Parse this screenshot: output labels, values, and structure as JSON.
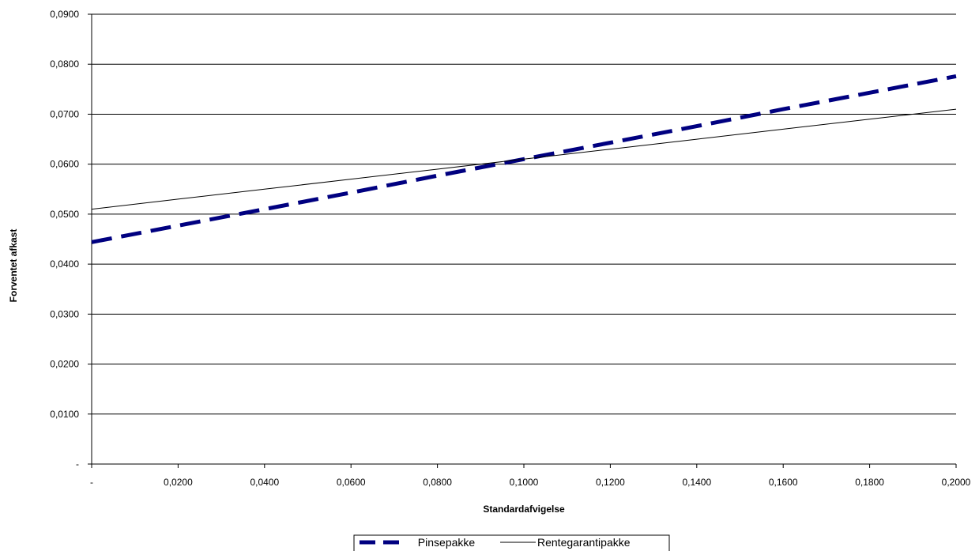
{
  "chart_data": {
    "type": "line",
    "xlabel": "Standardafvigelse",
    "ylabel": "Forventet afkast",
    "xlim": [
      0,
      0.2
    ],
    "ylim": [
      0,
      0.09
    ],
    "x_ticks": [
      "-",
      "0,0200",
      "0,0400",
      "0,0600",
      "0,0800",
      "0,1000",
      "0,1200",
      "0,1400",
      "0,1600",
      "0,1800",
      "0,2000"
    ],
    "y_ticks": [
      "-",
      "0,0100",
      "0,0200",
      "0,0300",
      "0,0400",
      "0,0500",
      "0,0600",
      "0,0700",
      "0,0800",
      "0,0900"
    ],
    "grid": "horizontal",
    "legend_position": "bottom",
    "series": [
      {
        "name": "Pinsepakke",
        "color": "#000080",
        "style": "dashed",
        "x": [
          0,
          0.02,
          0.04,
          0.06,
          0.08,
          0.1,
          0.12,
          0.14,
          0.16,
          0.18,
          0.2
        ],
        "y": [
          0.0444,
          0.0477,
          0.051,
          0.0543,
          0.0577,
          0.061,
          0.0643,
          0.0676,
          0.071,
          0.0743,
          0.0776
        ]
      },
      {
        "name": "Rentegarantipakke",
        "color": "#000000",
        "style": "solid",
        "x": [
          0,
          0.02,
          0.04,
          0.06,
          0.08,
          0.1,
          0.12,
          0.14,
          0.16,
          0.18,
          0.2
        ],
        "y": [
          0.051,
          0.053,
          0.055,
          0.057,
          0.059,
          0.061,
          0.063,
          0.065,
          0.067,
          0.069,
          0.071
        ]
      }
    ]
  }
}
